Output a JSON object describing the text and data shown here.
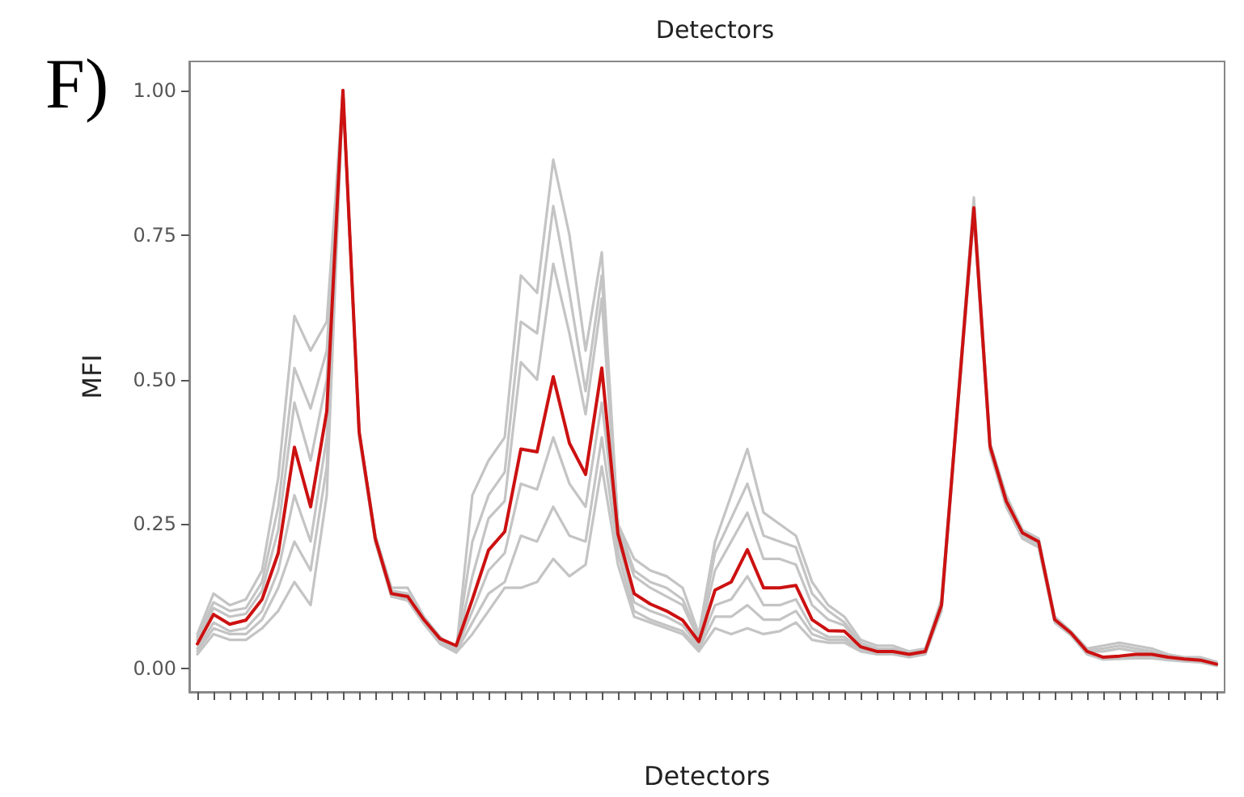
{
  "chart_data": {
    "type": "line",
    "title": "Detectors",
    "xlabel": "Detectors",
    "ylabel": "MFI",
    "annotations": [
      "F)"
    ],
    "categories": [
      null,
      null,
      null,
      null,
      null,
      null,
      null,
      null,
      null,
      null,
      null,
      null,
      null,
      null,
      null,
      null,
      null,
      null,
      null,
      null,
      null,
      null,
      null,
      null,
      null,
      null,
      null,
      null,
      null,
      null,
      null,
      null,
      null,
      null,
      null,
      null,
      null,
      null,
      null,
      null,
      null,
      null,
      null,
      null,
      null,
      null,
      null,
      null,
      null,
      null,
      null,
      null,
      null,
      null,
      null,
      null,
      null,
      null,
      null,
      null,
      null,
      null,
      null,
      null
    ],
    "ylim": [
      -0.04,
      1.05
    ],
    "yticks": [
      {
        "value": 0,
        "label": "0.00"
      },
      {
        "value": 0.25,
        "label": "0.25"
      },
      {
        "value": 0.5,
        "label": "0.50"
      },
      {
        "value": 0.75,
        "label": "0.75"
      },
      {
        "value": 1,
        "label": "1.00"
      }
    ],
    "grid": false,
    "marker": "none",
    "line_style": "solid",
    "series": [
      {
        "color": "#c4c4c4",
        "values": [
          0.06,
          0.13,
          0.11,
          0.12,
          0.17,
          0.33,
          0.61,
          0.55,
          0.6,
          1.0,
          0.41,
          0.23,
          0.14,
          0.14,
          0.09,
          0.055,
          0.03,
          0.3,
          0.36,
          0.4,
          0.68,
          0.65,
          0.88,
          0.75,
          0.55,
          0.72,
          0.25,
          0.19,
          0.17,
          0.16,
          0.14,
          0.06,
          0.22,
          0.3,
          0.38,
          0.27,
          0.25,
          0.23,
          0.15,
          0.11,
          0.09,
          0.05,
          0.04,
          0.04,
          0.03,
          0.035,
          0.12,
          0.46,
          0.815,
          0.39,
          0.3,
          0.24,
          0.225,
          0.09,
          0.065,
          0.035,
          0.04,
          0.045,
          0.04,
          0.035,
          0.025,
          0.02,
          0.02,
          0.012
        ]
      },
      {
        "color": "#c4c4c4",
        "values": [
          0.055,
          0.115,
          0.1,
          0.105,
          0.15,
          0.28,
          0.52,
          0.45,
          0.55,
          1.0,
          0.41,
          0.23,
          0.135,
          0.13,
          0.09,
          0.05,
          0.035,
          0.22,
          0.3,
          0.34,
          0.6,
          0.58,
          0.8,
          0.65,
          0.48,
          0.68,
          0.25,
          0.17,
          0.15,
          0.14,
          0.12,
          0.055,
          0.2,
          0.26,
          0.32,
          0.23,
          0.22,
          0.21,
          0.13,
          0.1,
          0.08,
          0.045,
          0.035,
          0.035,
          0.03,
          0.03,
          0.115,
          0.46,
          0.81,
          0.39,
          0.295,
          0.24,
          0.225,
          0.088,
          0.063,
          0.032,
          0.035,
          0.04,
          0.035,
          0.03,
          0.022,
          0.018,
          0.016,
          0.01
        ]
      },
      {
        "color": "#c4c4c4",
        "values": [
          0.05,
          0.105,
          0.09,
          0.095,
          0.135,
          0.24,
          0.46,
          0.36,
          0.5,
          1.0,
          0.41,
          0.225,
          0.13,
          0.128,
          0.087,
          0.05,
          0.035,
          0.16,
          0.26,
          0.29,
          0.53,
          0.5,
          0.7,
          0.58,
          0.44,
          0.64,
          0.24,
          0.16,
          0.14,
          0.125,
          0.11,
          0.05,
          0.17,
          0.22,
          0.27,
          0.19,
          0.19,
          0.18,
          0.11,
          0.085,
          0.075,
          0.04,
          0.033,
          0.033,
          0.028,
          0.03,
          0.112,
          0.455,
          0.8,
          0.385,
          0.29,
          0.235,
          0.22,
          0.086,
          0.062,
          0.03,
          0.03,
          0.035,
          0.03,
          0.028,
          0.02,
          0.017,
          0.015,
          0.009
        ]
      },
      {
        "color": "#c4c4c4",
        "values": [
          0.035,
          0.08,
          0.065,
          0.07,
          0.1,
          0.17,
          0.3,
          0.22,
          0.4,
          1.0,
          0.41,
          0.225,
          0.128,
          0.122,
          0.082,
          0.048,
          0.033,
          0.1,
          0.17,
          0.2,
          0.32,
          0.31,
          0.4,
          0.32,
          0.28,
          0.46,
          0.22,
          0.115,
          0.1,
          0.09,
          0.075,
          0.04,
          0.11,
          0.12,
          0.16,
          0.11,
          0.11,
          0.12,
          0.07,
          0.055,
          0.055,
          0.035,
          0.028,
          0.028,
          0.023,
          0.028,
          0.108,
          0.45,
          0.79,
          0.38,
          0.285,
          0.23,
          0.215,
          0.083,
          0.06,
          0.028,
          0.018,
          0.02,
          0.022,
          0.022,
          0.018,
          0.015,
          0.013,
          0.007
        ]
      },
      {
        "color": "#c4c4c4",
        "values": [
          0.03,
          0.07,
          0.06,
          0.06,
          0.085,
          0.14,
          0.22,
          0.17,
          0.35,
          1.0,
          0.41,
          0.22,
          0.125,
          0.12,
          0.08,
          0.045,
          0.03,
          0.08,
          0.13,
          0.15,
          0.23,
          0.22,
          0.28,
          0.23,
          0.22,
          0.4,
          0.2,
          0.1,
          0.085,
          0.075,
          0.065,
          0.035,
          0.09,
          0.09,
          0.11,
          0.085,
          0.085,
          0.1,
          0.06,
          0.05,
          0.05,
          0.033,
          0.026,
          0.026,
          0.022,
          0.026,
          0.105,
          0.45,
          0.79,
          0.38,
          0.285,
          0.23,
          0.215,
          0.082,
          0.06,
          0.026,
          0.017,
          0.018,
          0.02,
          0.02,
          0.016,
          0.014,
          0.012,
          0.006
        ]
      },
      {
        "color": "#c4c4c4",
        "values": [
          0.025,
          0.06,
          0.05,
          0.05,
          0.07,
          0.1,
          0.15,
          0.11,
          0.3,
          1.0,
          0.4,
          0.22,
          0.125,
          0.118,
          0.078,
          0.043,
          0.028,
          0.06,
          0.1,
          0.14,
          0.14,
          0.15,
          0.19,
          0.16,
          0.18,
          0.35,
          0.18,
          0.09,
          0.08,
          0.07,
          0.06,
          0.03,
          0.07,
          0.06,
          0.07,
          0.06,
          0.065,
          0.08,
          0.05,
          0.045,
          0.045,
          0.03,
          0.025,
          0.025,
          0.02,
          0.025,
          0.1,
          0.445,
          0.785,
          0.375,
          0.28,
          0.225,
          0.21,
          0.08,
          0.058,
          0.025,
          0.016,
          0.017,
          0.018,
          0.018,
          0.015,
          0.013,
          0.011,
          0.005
        ]
      },
      {
        "color": "#cc1111",
        "values": [
          0.043,
          0.094,
          0.077,
          0.084,
          0.12,
          0.2,
          0.383,
          0.28,
          0.445,
          1.0,
          0.41,
          0.225,
          0.13,
          0.125,
          0.085,
          0.052,
          0.04,
          0.12,
          0.205,
          0.237,
          0.38,
          0.375,
          0.505,
          0.39,
          0.336,
          0.52,
          0.233,
          0.13,
          0.112,
          0.1,
          0.084,
          0.047,
          0.136,
          0.15,
          0.206,
          0.14,
          0.14,
          0.144,
          0.085,
          0.066,
          0.065,
          0.038,
          0.03,
          0.03,
          0.025,
          0.03,
          0.11,
          0.455,
          0.797,
          0.385,
          0.29,
          0.235,
          0.22,
          0.085,
          0.062,
          0.03,
          0.02,
          0.022,
          0.025,
          0.025,
          0.02,
          0.017,
          0.015,
          0.008
        ]
      }
    ]
  }
}
